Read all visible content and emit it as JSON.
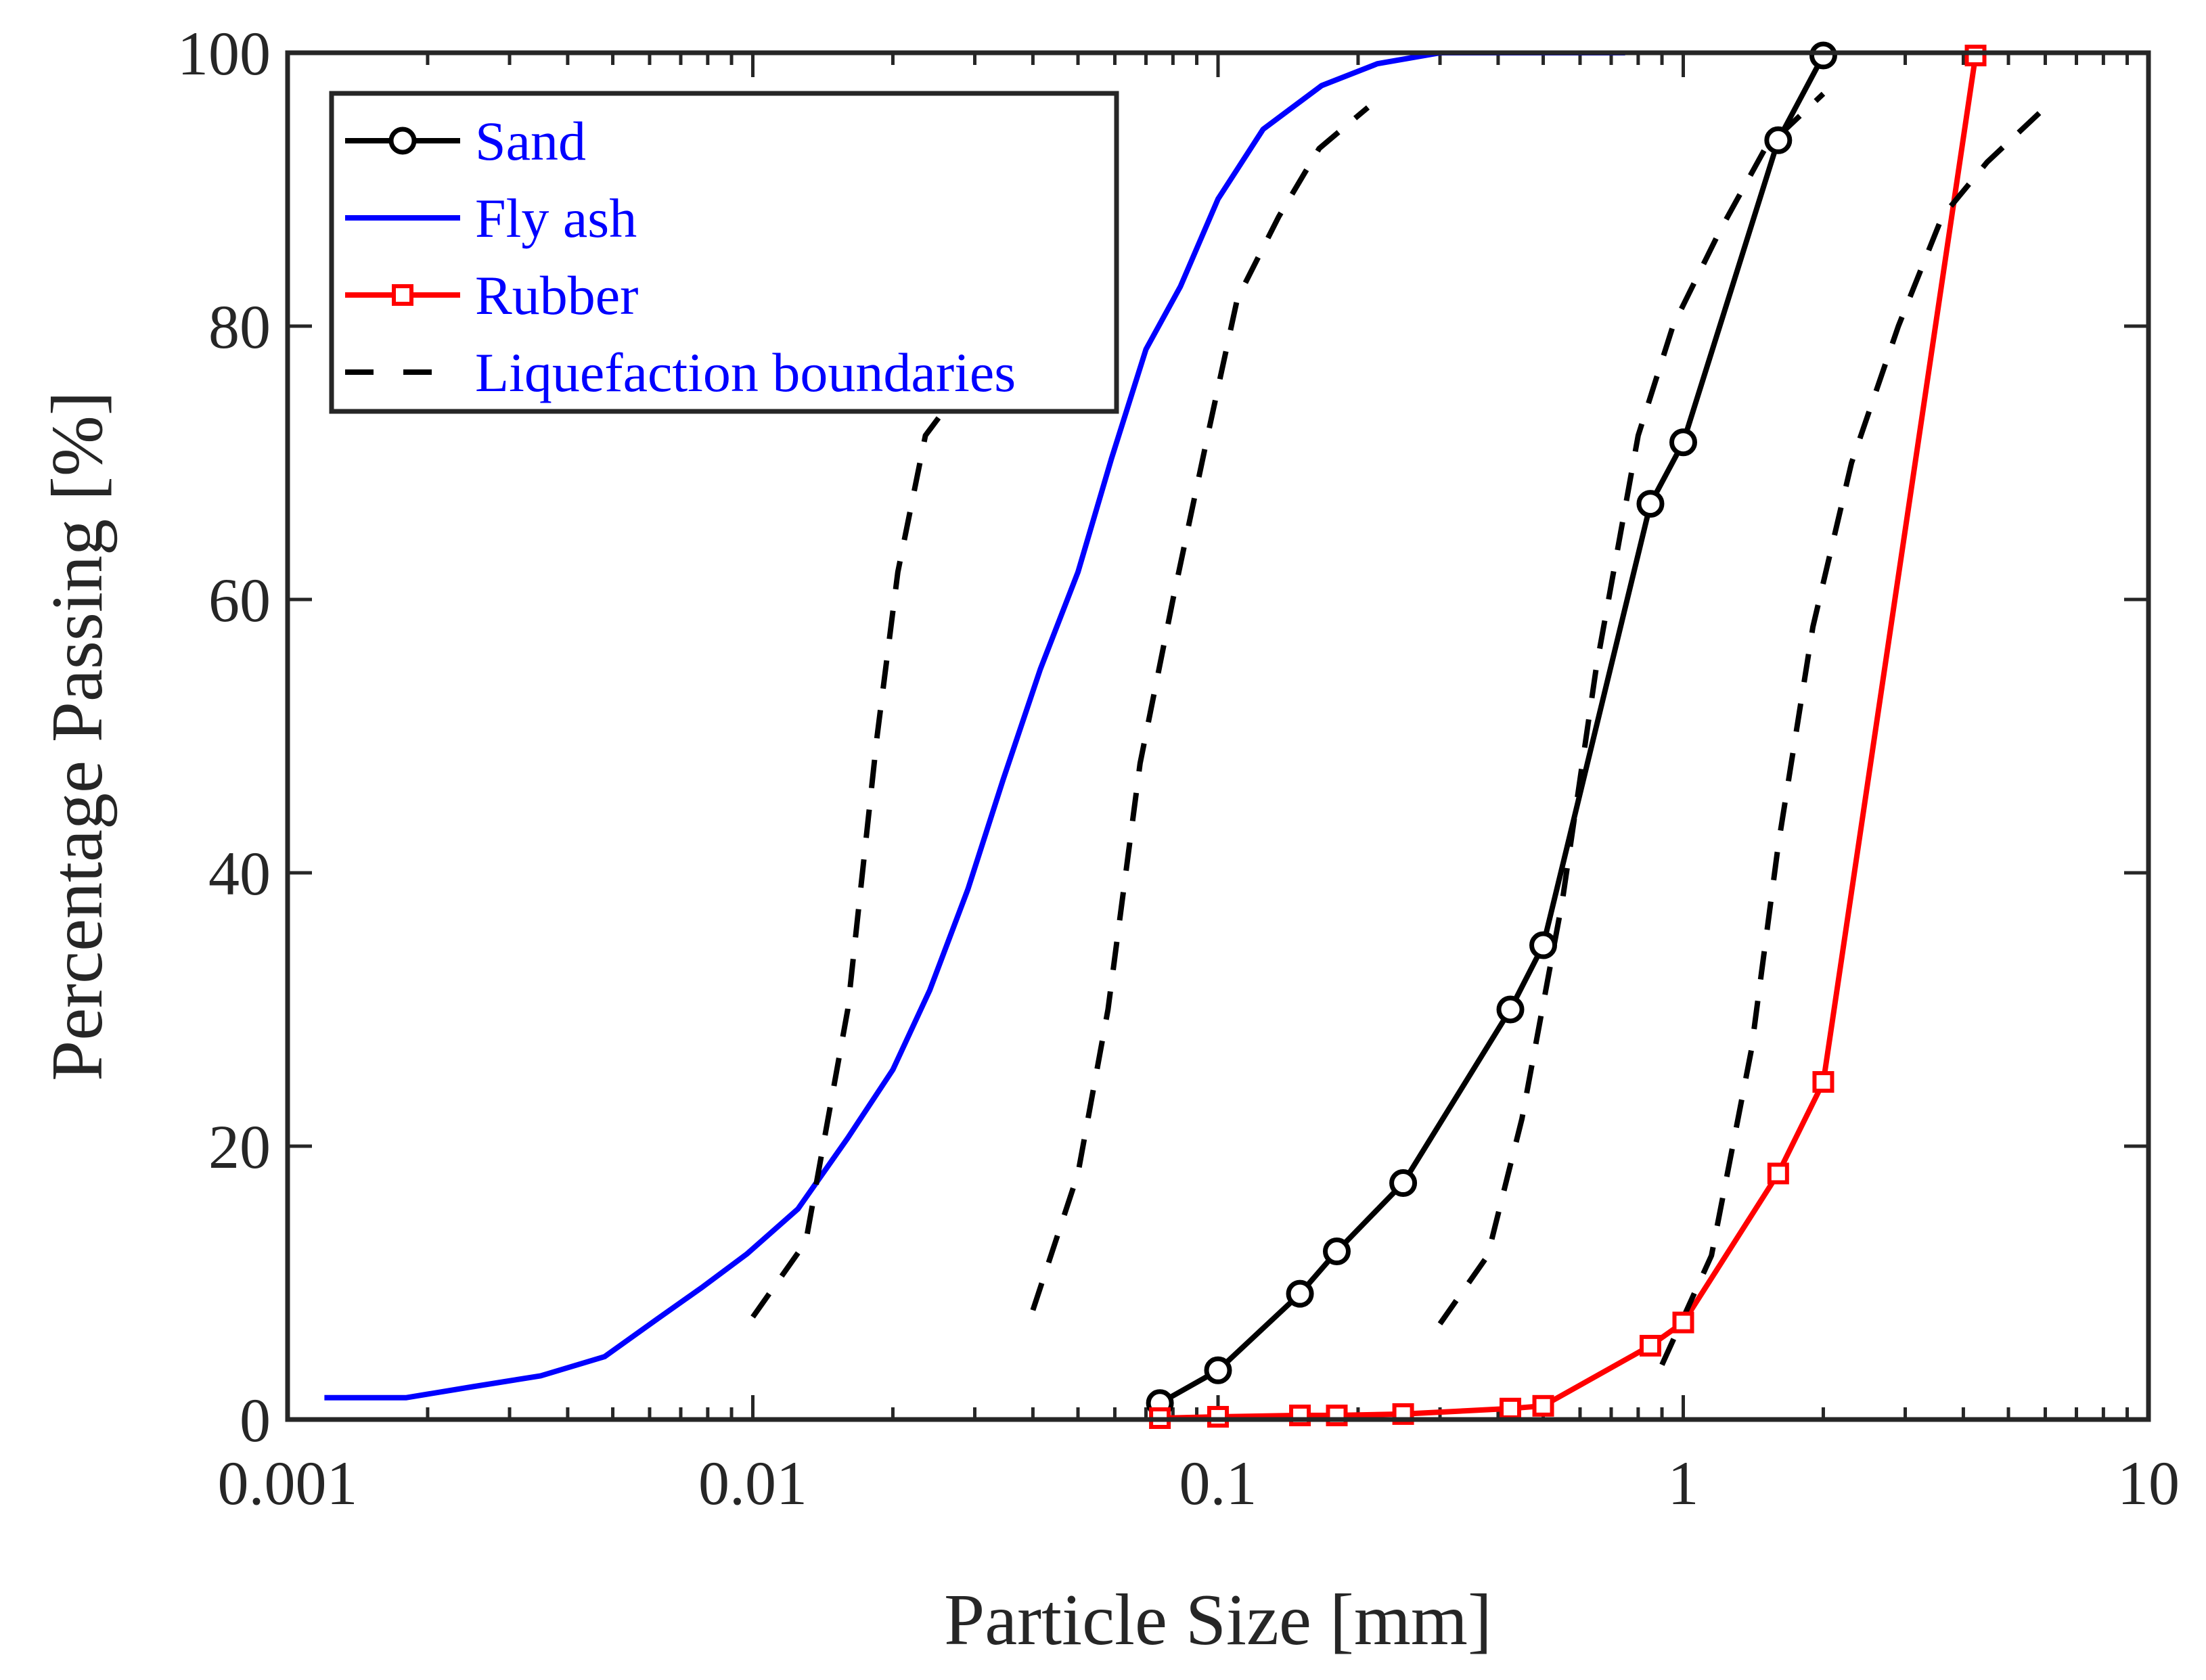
{
  "chart_data": {
    "type": "line",
    "x_scale": "log",
    "xlim": [
      0.001,
      10
    ],
    "ylim": [
      0,
      100
    ],
    "xlabel": "Particle Size [mm]",
    "ylabel": "Percentage Passing [%]",
    "x_ticks": [
      0.001,
      0.01,
      0.1,
      1,
      10
    ],
    "x_tick_labels": [
      "0.001",
      "0.01",
      "0.1",
      "1",
      "10"
    ],
    "y_ticks": [
      0,
      20,
      40,
      60,
      80,
      100
    ],
    "y_tick_labels": [
      "0",
      "20",
      "40",
      "60",
      "80",
      "100"
    ],
    "grid": false,
    "legend_position": "top-left",
    "legend_text_color": "#0000ff",
    "series": [
      {
        "name": "Sand",
        "color": "#000000",
        "line": "solid",
        "marker": "circle",
        "x": [
          0.075,
          0.1,
          0.15,
          0.18,
          0.25,
          0.425,
          0.5,
          0.85,
          1.0,
          1.6,
          2.0
        ],
        "y": [
          1.2,
          3.6,
          9.2,
          12.3,
          17.3,
          30.0,
          34.7,
          67.0,
          71.5,
          93.6,
          99.8
        ]
      },
      {
        "name": "Fly ash",
        "color": "#0000ff",
        "line": "solid",
        "marker": "none",
        "x": [
          0.0012,
          0.0018,
          0.0025,
          0.0035,
          0.0048,
          0.0062,
          0.0078,
          0.0097,
          0.0125,
          0.016,
          0.02,
          0.024,
          0.029,
          0.0345,
          0.0415,
          0.05,
          0.059,
          0.07,
          0.083,
          0.1,
          0.125,
          0.167,
          0.22,
          0.3,
          0.45,
          0.75
        ],
        "y": [
          1.6,
          1.6,
          2.4,
          3.2,
          4.6,
          7.3,
          9.7,
          12.1,
          15.4,
          20.6,
          25.6,
          31.4,
          38.8,
          46.8,
          54.9,
          62.0,
          70.3,
          78.3,
          82.9,
          89.3,
          94.4,
          97.6,
          99.2,
          100,
          100,
          100
        ]
      },
      {
        "name": "Rubber",
        "color": "#ff0000",
        "line": "solid",
        "marker": "square",
        "x": [
          0.075,
          0.1,
          0.15,
          0.18,
          0.25,
          0.425,
          0.5,
          0.85,
          1.0,
          1.6,
          2.0,
          4.25
        ],
        "y": [
          0.1,
          0.2,
          0.3,
          0.3,
          0.4,
          0.8,
          1.0,
          5.4,
          7.1,
          18.0,
          24.7,
          99.8
        ]
      },
      {
        "name": "Liquefaction boundaries",
        "color": "#000000",
        "line": "dashed",
        "marker": "none",
        "segments": [
          {
            "x": [
              0.01,
              0.013,
              0.016,
              0.0185,
              0.0205,
              0.0235,
              0.026
            ],
            "y": [
              7.5,
              13.0,
              30.0,
              50.0,
              62.0,
              72.0,
              74.0
            ]
          },
          {
            "x": [
              0.04,
              0.05,
              0.058,
              0.068,
              0.08,
              0.095,
              0.11,
              0.135,
              0.165,
              0.21
            ],
            "y": [
              8.0,
              18.0,
              30.0,
              48.0,
              60.0,
              72.0,
              82.0,
              88.0,
              93.0,
              96.0
            ]
          },
          {
            "x": [
              0.3,
              0.38,
              0.45,
              0.55,
              0.65,
              0.8,
              0.95,
              1.2,
              1.5,
              2.0
            ],
            "y": [
              7.0,
              12.0,
              22.0,
              38.0,
              55.0,
              72.0,
              80.0,
              87.0,
              93.0,
              97.0
            ]
          },
          {
            "x": [
              0.9,
              1.15,
              1.4,
              1.6,
              1.9,
              2.3,
              2.9,
              3.6,
              4.5,
              6.0
            ],
            "y": [
              4.0,
              12.0,
              27.0,
              42.0,
              58.0,
              70.0,
              80.0,
              88.0,
              92.0,
              96.0
            ]
          }
        ]
      }
    ]
  }
}
